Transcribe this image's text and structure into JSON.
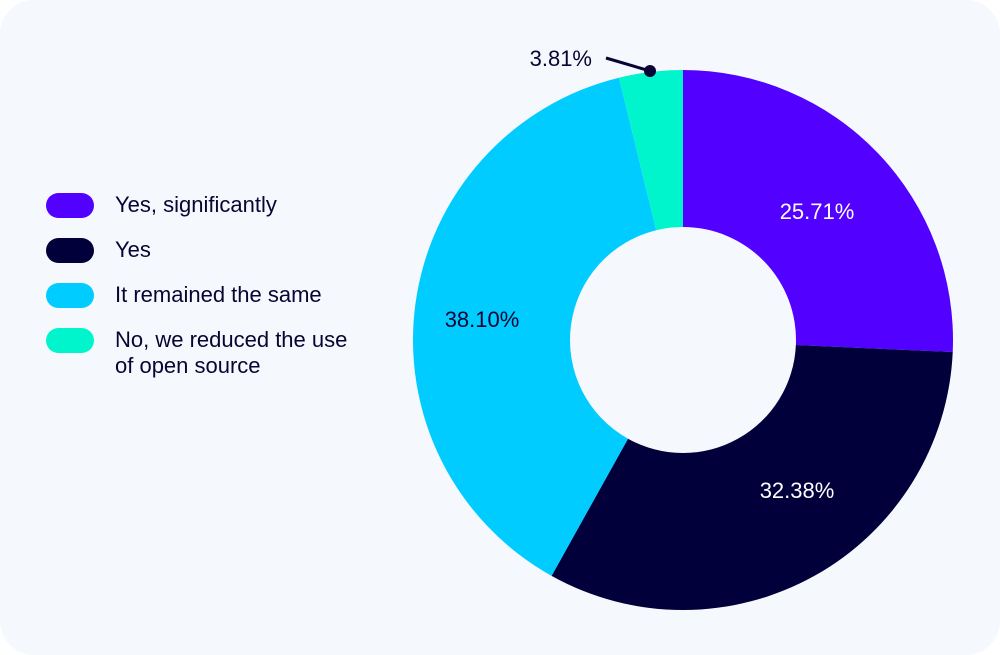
{
  "chart_data": {
    "type": "pie",
    "variant": "donut",
    "title": "",
    "categories": [
      "Yes, significantly",
      "Yes",
      "It remained the same",
      "No, we reduced the use of open source"
    ],
    "values": [
      25.71,
      32.38,
      38.1,
      3.81
    ],
    "labels": [
      "25.71%",
      "32.38%",
      "38.10%",
      "3.81%"
    ],
    "colors": [
      "#5200FF",
      "#02003A",
      "#00CCFF",
      "#00F5CC"
    ],
    "label_colors": [
      "#FFFFFF",
      "#FFFFFF",
      "#0A0433",
      "#0A0433"
    ],
    "start": "top",
    "direction": "clockwise",
    "legend_position": "left"
  }
}
